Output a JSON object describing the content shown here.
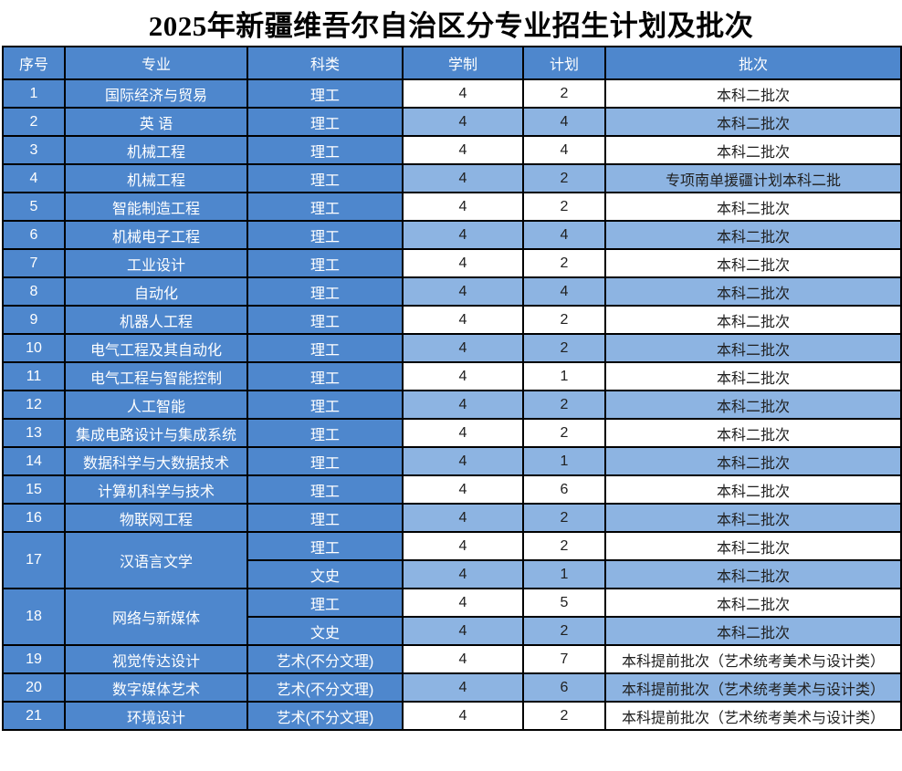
{
  "title": "2025年新疆维吾尔自治区分专业招生计划及批次",
  "colors": {
    "cell_blue": "#4e87cd",
    "row_light_blue": "#8db4e2",
    "row_white": "#ffffff",
    "border": "#000000",
    "text_on_blue": "#ffffff",
    "text_dark": "#202020"
  },
  "columns": [
    "序号",
    "专业",
    "科类",
    "学制",
    "计划",
    "批次"
  ],
  "rows": [
    {
      "no": "1",
      "major": "国际经济与贸易",
      "sub": [
        {
          "kelei": "理工",
          "xuezhi": "4",
          "jihua": "2",
          "pici": "本科二批次"
        }
      ]
    },
    {
      "no": "2",
      "major": "英 语",
      "sub": [
        {
          "kelei": "理工",
          "xuezhi": "4",
          "jihua": "4",
          "pici": "本科二批次"
        }
      ]
    },
    {
      "no": "3",
      "major": "机械工程",
      "sub": [
        {
          "kelei": "理工",
          "xuezhi": "4",
          "jihua": "4",
          "pici": "本科二批次"
        }
      ]
    },
    {
      "no": "4",
      "major": "机械工程",
      "sub": [
        {
          "kelei": "理工",
          "xuezhi": "4",
          "jihua": "2",
          "pici": "专项南单援疆计划本科二批"
        }
      ]
    },
    {
      "no": "5",
      "major": "智能制造工程",
      "sub": [
        {
          "kelei": "理工",
          "xuezhi": "4",
          "jihua": "2",
          "pici": "本科二批次"
        }
      ]
    },
    {
      "no": "6",
      "major": "机械电子工程",
      "sub": [
        {
          "kelei": "理工",
          "xuezhi": "4",
          "jihua": "4",
          "pici": "本科二批次"
        }
      ]
    },
    {
      "no": "7",
      "major": "工业设计",
      "sub": [
        {
          "kelei": "理工",
          "xuezhi": "4",
          "jihua": "2",
          "pici": "本科二批次"
        }
      ]
    },
    {
      "no": "8",
      "major": "自动化",
      "sub": [
        {
          "kelei": "理工",
          "xuezhi": "4",
          "jihua": "4",
          "pici": "本科二批次"
        }
      ]
    },
    {
      "no": "9",
      "major": "机器人工程",
      "sub": [
        {
          "kelei": "理工",
          "xuezhi": "4",
          "jihua": "2",
          "pici": "本科二批次"
        }
      ]
    },
    {
      "no": "10",
      "major": "电气工程及其自动化",
      "sub": [
        {
          "kelei": "理工",
          "xuezhi": "4",
          "jihua": "2",
          "pici": "本科二批次"
        }
      ]
    },
    {
      "no": "11",
      "major": "电气工程与智能控制",
      "sub": [
        {
          "kelei": "理工",
          "xuezhi": "4",
          "jihua": "1",
          "pici": "本科二批次"
        }
      ]
    },
    {
      "no": "12",
      "major": "人工智能",
      "sub": [
        {
          "kelei": "理工",
          "xuezhi": "4",
          "jihua": "2",
          "pici": "本科二批次"
        }
      ]
    },
    {
      "no": "13",
      "major": "集成电路设计与集成系统",
      "sub": [
        {
          "kelei": "理工",
          "xuezhi": "4",
          "jihua": "2",
          "pici": "本科二批次"
        }
      ]
    },
    {
      "no": "14",
      "major": "数据科学与大数据技术",
      "sub": [
        {
          "kelei": "理工",
          "xuezhi": "4",
          "jihua": "1",
          "pici": "本科二批次"
        }
      ]
    },
    {
      "no": "15",
      "major": "计算机科学与技术",
      "sub": [
        {
          "kelei": "理工",
          "xuezhi": "4",
          "jihua": "6",
          "pici": "本科二批次"
        }
      ]
    },
    {
      "no": "16",
      "major": "物联网工程",
      "sub": [
        {
          "kelei": "理工",
          "xuezhi": "4",
          "jihua": "2",
          "pici": "本科二批次"
        }
      ]
    },
    {
      "no": "17",
      "major": "汉语言文学",
      "sub": [
        {
          "kelei": "理工",
          "xuezhi": "4",
          "jihua": "2",
          "pici": "本科二批次"
        },
        {
          "kelei": "文史",
          "xuezhi": "4",
          "jihua": "1",
          "pici": "本科二批次"
        }
      ]
    },
    {
      "no": "18",
      "major": "网络与新媒体",
      "sub": [
        {
          "kelei": "理工",
          "xuezhi": "4",
          "jihua": "5",
          "pici": "本科二批次"
        },
        {
          "kelei": "文史",
          "xuezhi": "4",
          "jihua": "2",
          "pici": "本科二批次"
        }
      ]
    },
    {
      "no": "19",
      "major": "视觉传达设计",
      "sub": [
        {
          "kelei": "艺术(不分文理)",
          "xuezhi": "4",
          "jihua": "7",
          "pici": "本科提前批次（艺术统考美术与设计类）"
        }
      ]
    },
    {
      "no": "20",
      "major": "数字媒体艺术",
      "sub": [
        {
          "kelei": "艺术(不分文理)",
          "xuezhi": "4",
          "jihua": "6",
          "pici": "本科提前批次（艺术统考美术与设计类）"
        }
      ]
    },
    {
      "no": "21",
      "major": "环境设计",
      "sub": [
        {
          "kelei": "艺术(不分文理)",
          "xuezhi": "4",
          "jihua": "2",
          "pici": "本科提前批次（艺术统考美术与设计类）"
        }
      ]
    }
  ]
}
